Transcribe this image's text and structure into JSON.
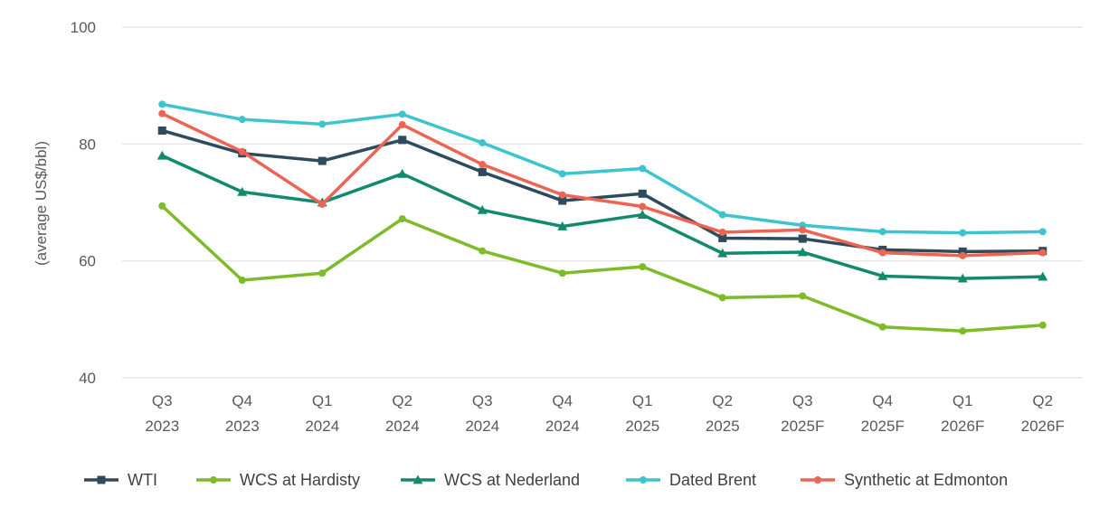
{
  "chart_data": {
    "type": "line",
    "title": "",
    "xlabel": "",
    "ylabel": "(average US$/bbl)",
    "ylim": [
      40,
      100
    ],
    "yticks": [
      40,
      60,
      80,
      100
    ],
    "grid": true,
    "legend_position": "bottom",
    "categories": [
      [
        "Q3",
        "2023"
      ],
      [
        "Q4",
        "2023"
      ],
      [
        "Q1",
        "2024"
      ],
      [
        "Q2",
        "2024"
      ],
      [
        "Q3",
        "2024"
      ],
      [
        "Q4",
        "2024"
      ],
      [
        "Q1",
        "2025"
      ],
      [
        "Q2",
        "2025"
      ],
      [
        "Q3",
        "2025F"
      ],
      [
        "Q4",
        "2025F"
      ],
      [
        "Q1",
        "2026F"
      ],
      [
        "Q2",
        "2026F"
      ]
    ],
    "series": [
      {
        "name": "WTI",
        "color": "#2E4A5C",
        "marker": "square",
        "values": [
          82.3,
          78.4,
          77.1,
          80.7,
          75.2,
          70.3,
          71.5,
          63.9,
          63.8,
          61.9,
          61.6,
          61.7
        ]
      },
      {
        "name": "WCS at Hardisty",
        "color": "#7DBB2A",
        "marker": "circle",
        "values": [
          69.4,
          56.7,
          57.9,
          67.2,
          61.7,
          57.9,
          59.0,
          53.7,
          54.0,
          48.7,
          48.0,
          49.0
        ]
      },
      {
        "name": "WCS at Nederland",
        "color": "#138A6E",
        "marker": "triangle",
        "values": [
          78.0,
          71.8,
          70.0,
          74.9,
          68.7,
          65.9,
          67.9,
          61.3,
          61.5,
          57.4,
          57.0,
          57.3
        ]
      },
      {
        "name": "Dated Brent",
        "color": "#3DC4CF",
        "marker": "circle",
        "values": [
          86.8,
          84.2,
          83.4,
          85.1,
          80.2,
          74.9,
          75.8,
          67.9,
          66.1,
          65.0,
          64.8,
          65.0
        ]
      },
      {
        "name": "Synthetic at Edmonton",
        "color": "#EE6352",
        "marker": "circle",
        "values": [
          85.2,
          78.7,
          69.7,
          83.3,
          76.5,
          71.3,
          69.3,
          64.9,
          65.3,
          61.4,
          60.9,
          61.4
        ]
      }
    ]
  }
}
